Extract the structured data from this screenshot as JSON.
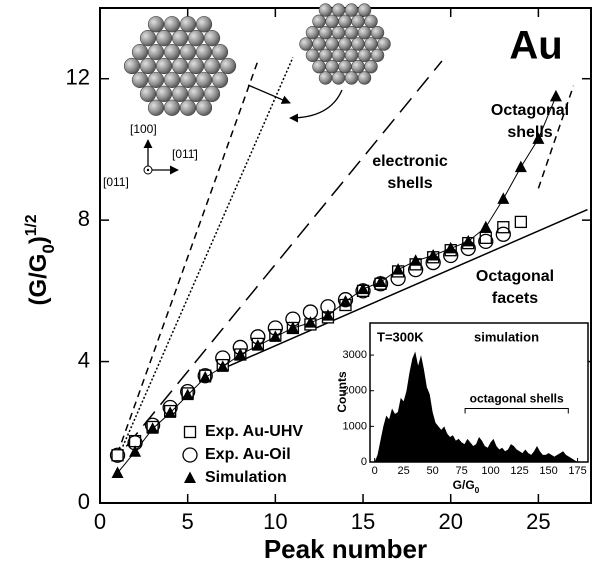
{
  "chart_data": [
    {
      "type": "scatter",
      "xlabel": "Peak number",
      "ylabel": [
        "(G/G",
        "0",
        ")",
        "1/2"
      ],
      "xlim": [
        0,
        28
      ],
      "ylim": [
        0,
        14
      ],
      "xticks": [
        0,
        5,
        10,
        15,
        20,
        25
      ],
      "yticks": [
        0,
        4,
        8,
        12
      ],
      "series": [
        {
          "name": "Exp. Au-UHV",
          "marker": "square",
          "color": "#000000",
          "x": [
            1,
            2,
            3,
            4,
            5,
            6,
            7,
            8,
            9,
            10,
            11,
            12,
            13,
            14,
            15,
            16,
            17,
            18,
            19,
            20,
            21,
            22,
            23,
            24
          ],
          "values": [
            1.35,
            1.75,
            2.15,
            2.6,
            3.1,
            3.6,
            3.9,
            4.2,
            4.5,
            4.75,
            4.95,
            5.05,
            5.25,
            5.6,
            6.0,
            6.2,
            6.55,
            6.75,
            6.95,
            7.15,
            7.35,
            7.5,
            7.8,
            7.95
          ]
        },
        {
          "name": "Exp. Au-Oil",
          "marker": "circle",
          "color": "#000000",
          "x": [
            1,
            2,
            3,
            4,
            5,
            6,
            7,
            8,
            9,
            10,
            11,
            12,
            13,
            14,
            15,
            16,
            17,
            18,
            19,
            20,
            21,
            22,
            23
          ],
          "values": [
            1.35,
            1.7,
            2.2,
            2.7,
            3.15,
            3.6,
            4.1,
            4.4,
            4.7,
            4.95,
            5.2,
            5.4,
            5.55,
            5.75,
            6.0,
            6.2,
            6.35,
            6.6,
            6.8,
            7.0,
            7.2,
            7.4,
            7.6
          ]
        },
        {
          "name": "Simulation",
          "marker": "triangle",
          "connect": true,
          "color": "#000000",
          "x": [
            1,
            2,
            3,
            4,
            5,
            6,
            7,
            8,
            9,
            10,
            11,
            12,
            13,
            14,
            15,
            16,
            17,
            18,
            19,
            20,
            21,
            22,
            23,
            24,
            25,
            26
          ],
          "values": [
            0.85,
            1.45,
            2.1,
            2.55,
            3.05,
            3.55,
            3.85,
            4.2,
            4.45,
            4.7,
            4.95,
            5.1,
            5.3,
            5.7,
            6.05,
            6.25,
            6.6,
            6.85,
            7.0,
            7.2,
            7.4,
            7.8,
            8.6,
            9.5,
            10.3,
            11.5
          ]
        }
      ],
      "guides": [
        {
          "dash": "solid",
          "x": [
            7,
            27.8
          ],
          "y": [
            3.8,
            8.3
          ]
        },
        {
          "dash": "dash",
          "x": [
            25,
            27
          ],
          "y": [
            8.9,
            11.8
          ]
        },
        {
          "dash": "long-dash",
          "x": [
            1.5,
            19.5
          ],
          "y": [
            1.6,
            12.5
          ]
        },
        {
          "dash": "dot",
          "x": [
            1.3,
            11
          ],
          "y": [
            1.6,
            12.6
          ]
        },
        {
          "dash": "dash",
          "x": [
            1,
            9
          ],
          "y": [
            1.4,
            12.5
          ]
        }
      ],
      "annotations": {
        "element": "Au",
        "octagonal_shells": [
          "Octagonal",
          "shells"
        ],
        "electronic_shells": [
          "electronic",
          "shells"
        ],
        "octagonal_facets": [
          "Octagonal",
          "facets"
        ],
        "directions": [
          "[100]",
          "[011̄]",
          "[011]"
        ]
      }
    },
    {
      "type": "area",
      "color": "#000000",
      "xlabel": [
        "G/G",
        "0"
      ],
      "ylabel": "Counts",
      "xlim": [
        -4,
        184
      ],
      "ylim": [
        0,
        3900
      ],
      "xticks": [
        0,
        25,
        50,
        75,
        100,
        125,
        150,
        175
      ],
      "yticks": [
        0,
        1000,
        2000,
        3000
      ],
      "x": [
        0,
        2.5,
        5,
        7.5,
        10,
        12.5,
        15,
        17.5,
        20,
        22.5,
        25,
        27.5,
        30,
        32.5,
        35,
        37.5,
        40,
        42.5,
        45,
        47.5,
        50,
        52.5,
        55,
        57.5,
        60,
        62.5,
        65,
        67.5,
        70,
        72.5,
        75,
        77.5,
        80,
        82.5,
        85,
        87.5,
        90,
        92.5,
        95,
        97.5,
        100,
        102.5,
        105,
        107.5,
        110,
        112.5,
        115,
        117.5,
        120,
        122.5,
        125,
        127.5,
        130,
        132.5,
        135,
        137.5,
        140,
        142.5,
        145,
        147.5,
        150,
        152.5,
        155,
        157.5,
        160,
        162.5,
        165,
        167.5,
        170,
        172.5,
        175
      ],
      "values": [
        0,
        200,
        600,
        1000,
        1300,
        1200,
        1500,
        1350,
        1400,
        1800,
        1700,
        2000,
        2500,
        2900,
        3100,
        2700,
        3000,
        2600,
        2100,
        1900,
        1400,
        1100,
        1000,
        900,
        1000,
        800,
        700,
        750,
        600,
        650,
        550,
        500,
        650,
        550,
        450,
        500,
        700,
        600,
        450,
        400,
        550,
        650,
        450,
        350,
        400,
        300,
        350,
        500,
        450,
        350,
        300,
        250,
        350,
        250,
        200,
        300,
        450,
        300,
        200,
        200,
        250,
        200,
        150,
        200,
        250,
        300,
        200,
        150,
        100,
        50,
        0
      ],
      "annotations": {
        "temperature": "T=300K",
        "label": "simulation"
      },
      "bracket": {
        "label": "octagonal shells",
        "x": [
          78,
          167
        ],
        "y": 1500
      }
    }
  ]
}
